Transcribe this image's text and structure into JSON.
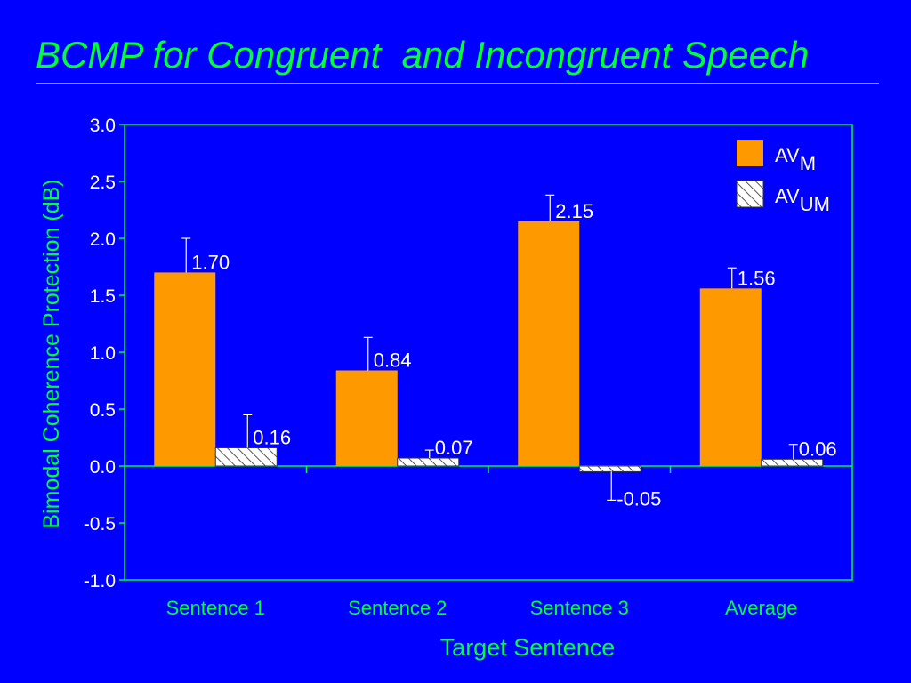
{
  "slide": {
    "title": "BCMP for Congruent  and Incongruent Speech"
  },
  "colors": {
    "background": "#0000ff",
    "title": "#00ff33",
    "axis": "#00ff33",
    "text": "#ffffff",
    "bar_av_m": "#ff9900",
    "bar_av_um": "#ffffff",
    "hatch": "#555555"
  },
  "chart_data": {
    "type": "bar",
    "title": "",
    "xlabel": "Target Sentence",
    "ylabel": "Bimodal Coherence Protection (dB)",
    "ylim": [
      -1.0,
      3.0
    ],
    "yticks": [
      "-1.0",
      "-0.5",
      "0.0",
      "0.5",
      "1.0",
      "1.5",
      "2.0",
      "2.5",
      "3.0"
    ],
    "categories": [
      "Sentence 1",
      "Sentence 2",
      "Sentence 3",
      "Average"
    ],
    "legend_position": "top-right",
    "series": [
      {
        "name": "AVM",
        "legend_main": "AV",
        "legend_sub": "M",
        "fill": "solid",
        "values": [
          1.7,
          0.84,
          2.15,
          1.56
        ],
        "labels": [
          "1.70",
          "0.84",
          "2.15",
          "1.56"
        ],
        "error_upper": [
          2.0,
          1.13,
          2.38,
          1.74
        ]
      },
      {
        "name": "AVUM",
        "legend_main": "AV",
        "legend_sub": "UM",
        "fill": "hatched",
        "values": [
          0.16,
          0.07,
          -0.05,
          0.06
        ],
        "labels": [
          "0.16",
          "0.07",
          "-0.05",
          "0.06"
        ],
        "error_upper": [
          0.45,
          0.14,
          -0.3,
          0.19
        ]
      }
    ]
  }
}
